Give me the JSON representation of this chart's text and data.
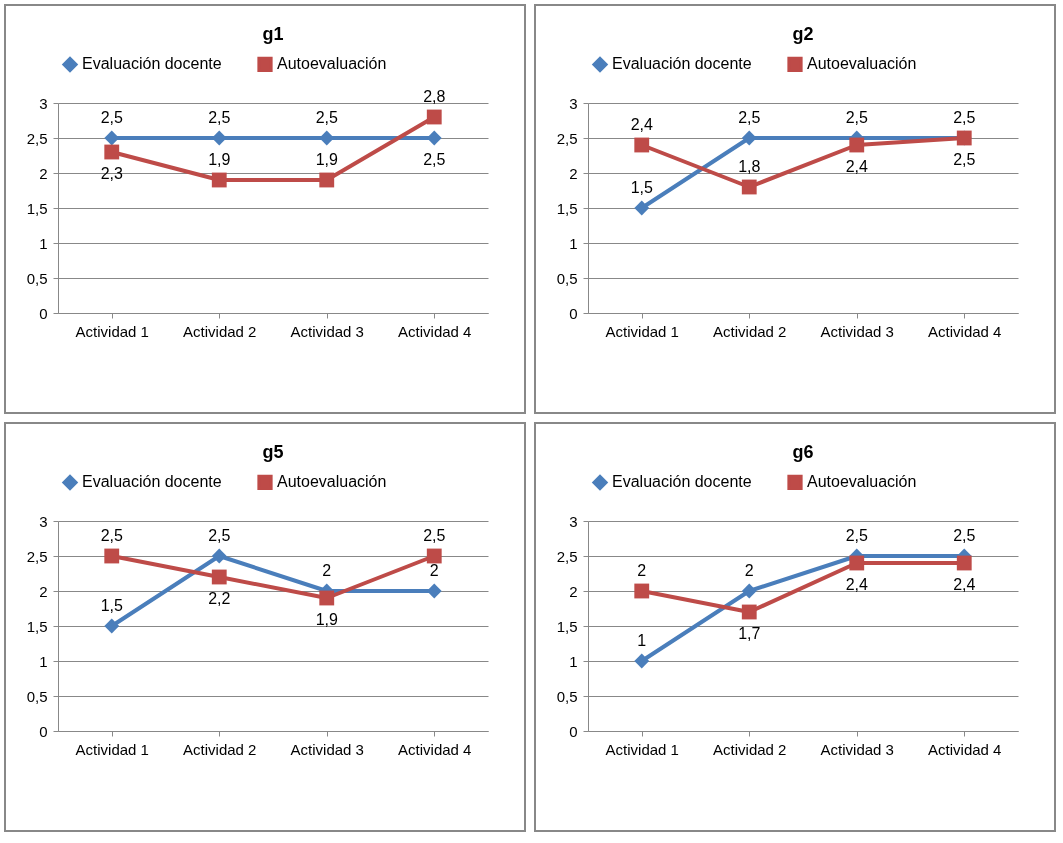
{
  "chart_data": [
    {
      "type": "line",
      "title": "g1",
      "categories": [
        "Actividad 1",
        "Actividad 2",
        "Actividad 3",
        "Actividad 4"
      ],
      "ylim": [
        0,
        3
      ],
      "yticks": [
        0,
        {
          "value": 0.5,
          "label": "0,5"
        },
        1,
        {
          "value": 1.5,
          "label": "1,5"
        },
        2,
        {
          "value": 2.5,
          "label": "2,5"
        },
        3
      ],
      "grid": "y",
      "legend": "top",
      "series": [
        {
          "name": "Evaluación docente",
          "color": "#4a7ebb",
          "marker": "diamond",
          "values": [
            2.5,
            2.5,
            2.5,
            2.5
          ],
          "value_labels": [
            "2,5",
            "2,5",
            "2,5",
            "2,5"
          ]
        },
        {
          "name": "Autoevaluación",
          "color": "#be4b48",
          "marker": "square",
          "values": [
            2.3,
            1.9,
            1.9,
            2.8
          ],
          "value_labels": [
            "2,3",
            "1,9",
            "1,9",
            "2,8"
          ]
        }
      ]
    },
    {
      "type": "line",
      "title": "g2",
      "categories": [
        "Actividad 1",
        "Actividad 2",
        "Actividad 3",
        "Actividad 4"
      ],
      "ylim": [
        0,
        3
      ],
      "yticks": [
        0,
        {
          "value": 0.5,
          "label": "0,5"
        },
        1,
        {
          "value": 1.5,
          "label": "1,5"
        },
        2,
        {
          "value": 2.5,
          "label": "2,5"
        },
        3
      ],
      "grid": "y",
      "legend": "top",
      "series": [
        {
          "name": "Evaluación docente",
          "color": "#4a7ebb",
          "marker": "diamond",
          "values": [
            1.5,
            2.5,
            2.5,
            2.5
          ],
          "value_labels": [
            "1,5",
            "2,5",
            "2,5",
            "2,5"
          ]
        },
        {
          "name": "Autoevaluación",
          "color": "#be4b48",
          "marker": "square",
          "values": [
            2.4,
            1.8,
            2.4,
            2.5
          ],
          "value_labels": [
            "2,4",
            "1,8",
            "2,4",
            "2,5"
          ]
        }
      ]
    },
    {
      "type": "line",
      "title": "g5",
      "categories": [
        "Actividad 1",
        "Actividad 2",
        "Actividad 3",
        "Actividad 4"
      ],
      "ylim": [
        0,
        3
      ],
      "yticks": [
        0,
        {
          "value": 0.5,
          "label": "0,5"
        },
        1,
        {
          "value": 1.5,
          "label": "1,5"
        },
        2,
        {
          "value": 2.5,
          "label": "2,5"
        },
        3
      ],
      "grid": "y",
      "legend": "top",
      "series": [
        {
          "name": "Evaluación docente",
          "color": "#4a7ebb",
          "marker": "diamond",
          "values": [
            1.5,
            2.5,
            2,
            2
          ],
          "value_labels": [
            "1,5",
            "2,5",
            "2",
            "2"
          ]
        },
        {
          "name": "Autoevaluación",
          "color": "#be4b48",
          "marker": "square",
          "values": [
            2.5,
            2.2,
            1.9,
            2.5
          ],
          "value_labels": [
            "2,5",
            "2,2",
            "1,9",
            "2,5"
          ]
        }
      ]
    },
    {
      "type": "line",
      "title": "g6",
      "categories": [
        "Actividad 1",
        "Actividad 2",
        "Actividad 3",
        "Actividad 4"
      ],
      "ylim": [
        0,
        3
      ],
      "yticks": [
        0,
        {
          "value": 0.5,
          "label": "0,5"
        },
        1,
        {
          "value": 1.5,
          "label": "1,5"
        },
        2,
        {
          "value": 2.5,
          "label": "2,5"
        },
        3
      ],
      "grid": "y",
      "legend": "top",
      "series": [
        {
          "name": "Evaluación docente",
          "color": "#4a7ebb",
          "marker": "diamond",
          "values": [
            1,
            2,
            2.5,
            2.5
          ],
          "value_labels": [
            "1",
            "2",
            "2,5",
            "2,5"
          ]
        },
        {
          "name": "Autoevaluación",
          "color": "#be4b48",
          "marker": "square",
          "values": [
            2,
            1.7,
            2.4,
            2.4
          ],
          "value_labels": [
            "2",
            "1,7",
            "2,4",
            "2,4"
          ]
        }
      ]
    }
  ]
}
